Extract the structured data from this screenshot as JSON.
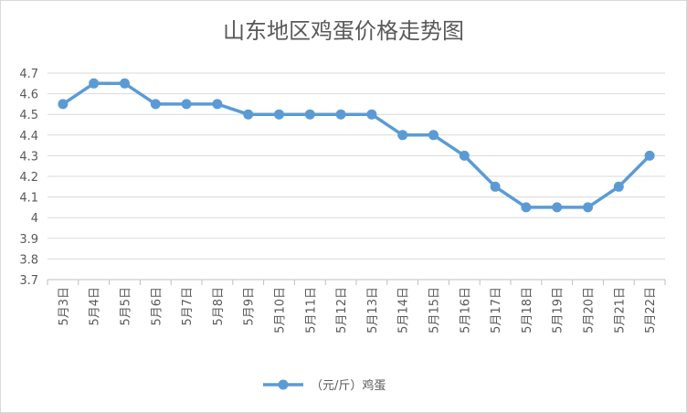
{
  "chart_data": {
    "type": "line",
    "title": "山东地区鸡蛋价格走势图",
    "categories": [
      "5月3日",
      "5月4日",
      "5月5日",
      "5月6日",
      "5月7日",
      "5月8日",
      "5月9日",
      "5月10日",
      "5月11日",
      "5月12日",
      "5月13日",
      "5月14日",
      "5月15日",
      "5月16日",
      "5月17日",
      "5月18日",
      "5月19日",
      "5月20日",
      "5月21日",
      "5月22日"
    ],
    "series": [
      {
        "name": "（元/斤）鸡蛋",
        "values": [
          4.55,
          4.65,
          4.65,
          4.55,
          4.55,
          4.55,
          4.5,
          4.5,
          4.5,
          4.5,
          4.5,
          4.4,
          4.4,
          4.3,
          4.15,
          4.05,
          4.05,
          4.05,
          4.15,
          4.3
        ],
        "color": "#5b9bd5"
      }
    ],
    "y_ticks": [
      "4.7",
      "4.6",
      "4.5",
      "4.4",
      "4.3",
      "4.2",
      "4.1",
      "4",
      "3.9",
      "3.8",
      "3.7"
    ],
    "ylim": [
      3.7,
      4.7
    ],
    "grid": true,
    "legend_position": "bottom",
    "colors": {
      "grid": "#d9d9d9",
      "text": "#595959"
    }
  }
}
